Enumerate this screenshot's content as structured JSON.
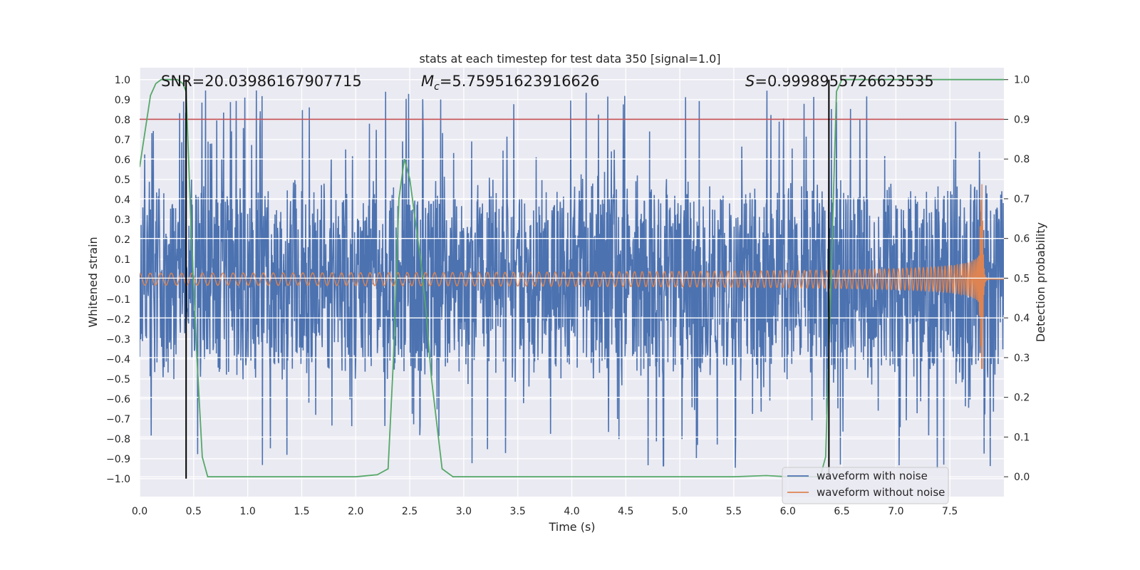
{
  "chart_data": {
    "type": "line",
    "title": "stats at each timestep for test data 350 [signal=1.0]",
    "xlabel": "Time (s)",
    "ylabel": "Whitened strain",
    "y2label": "Detection probability",
    "xlim": [
      0.0,
      8.0
    ],
    "ylim": [
      -1.09,
      1.06
    ],
    "y2lim": [
      -0.05,
      1.03
    ],
    "xticks": [
      "0.0",
      "0.5",
      "1.0",
      "1.5",
      "2.0",
      "2.5",
      "3.0",
      "3.5",
      "4.0",
      "4.5",
      "5.0",
      "5.5",
      "6.0",
      "6.5",
      "7.0",
      "7.5"
    ],
    "yticks": [
      "1.0",
      "0.9",
      "0.8",
      "0.7",
      "0.6",
      "0.5",
      "0.4",
      "0.3",
      "0.2",
      "0.1",
      "0.0",
      "-0.1",
      "-0.2",
      "-0.3",
      "-0.4",
      "-0.5",
      "-0.6",
      "-0.7",
      "-0.8",
      "-0.9",
      "-1.0"
    ],
    "y2ticks": [
      "1.0",
      "0.9",
      "0.8",
      "0.7",
      "0.6",
      "0.5",
      "0.4",
      "0.3",
      "0.2",
      "0.1",
      "0.0"
    ],
    "annotations": {
      "snr": "SNR=20.03986167907715",
      "mc_symbol": "M",
      "mc_sub": "c",
      "mc_value": "=5.75951623916626",
      "s_symbol": "S",
      "s_value": "=0.9998955726623535"
    },
    "threshold": {
      "value": 0.9,
      "axis": "right",
      "color": "#c44e52"
    },
    "vlines": [
      0.43,
      6.38
    ],
    "series": [
      {
        "name": "waveform with noise",
        "color": "#4c72b0",
        "kind": "noise",
        "envelope": 0.55,
        "spike_max": 0.95,
        "spike_min": -1.0
      },
      {
        "name": "waveform without noise",
        "color": "#dd8452",
        "kind": "chirp",
        "t_merge": 7.8,
        "start_amp": 0.03,
        "peak_amp": 0.55,
        "min_amp": -0.45
      },
      {
        "name": "detection probability",
        "color": "#55a868",
        "axis": "right",
        "t": [
          0.0,
          0.05,
          0.1,
          0.15,
          0.2,
          0.25,
          0.3,
          0.35,
          0.4,
          0.43,
          0.48,
          0.53,
          0.58,
          0.63,
          0.7,
          1.0,
          1.5,
          2.0,
          2.2,
          2.3,
          2.35,
          2.4,
          2.45,
          2.5,
          2.55,
          2.6,
          2.65,
          2.7,
          2.8,
          2.9,
          3.0,
          4.0,
          5.0,
          5.5,
          5.8,
          6.0,
          6.2,
          6.3,
          6.35,
          6.4,
          6.45,
          6.5,
          6.6,
          7.0,
          7.5,
          8.0
        ],
        "p": [
          0.78,
          0.87,
          0.96,
          0.99,
          1.0,
          1.0,
          1.0,
          1.0,
          0.99,
          0.97,
          0.6,
          0.3,
          0.05,
          0.0,
          0.0,
          0.0,
          0.0,
          0.0,
          0.005,
          0.02,
          0.3,
          0.7,
          0.8,
          0.75,
          0.65,
          0.55,
          0.42,
          0.25,
          0.02,
          0.0,
          0.0,
          0.0,
          0.0,
          0.0,
          0.003,
          0.0,
          0.0,
          0.0,
          0.05,
          0.5,
          0.97,
          1.0,
          1.0,
          1.0,
          1.0,
          1.0
        ]
      }
    ],
    "legend": {
      "location": "bottom-right",
      "entries": [
        "waveform with noise",
        "waveform without noise"
      ]
    }
  }
}
